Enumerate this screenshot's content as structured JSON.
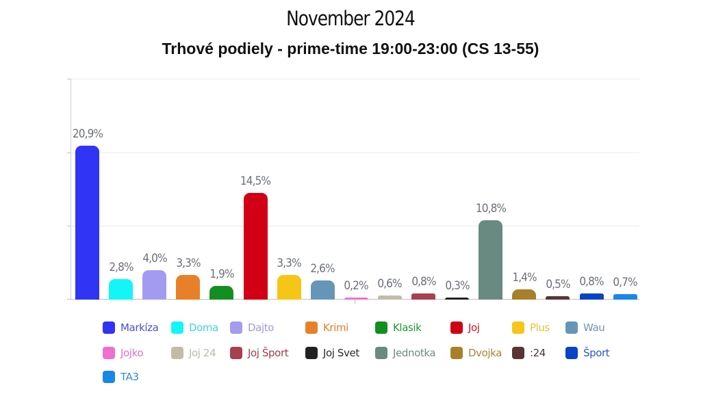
{
  "header": {
    "title": "November 2024",
    "subtitle": "Trhové podiely - prime-time 19:00-23:00 (CS 13-55)"
  },
  "chart_data": {
    "type": "bar",
    "title": "November 2024",
    "subtitle": "Trhové podiely - prime-time 19:00-23:00 (CS 13-55)",
    "xlabel": "",
    "ylabel": "",
    "ylim": [
      0,
      30
    ],
    "grid": true,
    "legend_position": "bottom",
    "categories": [
      "Markíza",
      "Doma",
      "Dajto",
      "Krimi",
      "Klasik",
      "Joj",
      "Plus",
      "Wau",
      "Jojko",
      "Joj 24",
      "Joj Šport",
      "Joj Svet",
      "Jednotka",
      "Dvojka",
      ":24",
      "Šport",
      "TA3"
    ],
    "values": [
      20.9,
      2.8,
      4.0,
      3.3,
      1.9,
      14.5,
      3.3,
      2.6,
      0.2,
      0.6,
      0.8,
      0.3,
      10.8,
      1.4,
      0.5,
      0.8,
      0.7
    ],
    "value_labels": [
      "20,9%",
      "2,8%",
      "4,0%",
      "3,3%",
      "1,9%",
      "14,5%",
      "3,3%",
      "2,6%",
      "0,2%",
      "0,6%",
      "0,8%",
      "0,3%",
      "10,8%",
      "1,4%",
      "0,5%",
      "0,8%",
      "0,7%"
    ],
    "colors": [
      "#2f34f5",
      "#14f5f5",
      "#a29bf0",
      "#e8802a",
      "#138f22",
      "#d10014",
      "#f5c518",
      "#6596b8",
      "#ef6fcf",
      "#c2bca6",
      "#a8404e",
      "#222222",
      "#688a80",
      "#a8802a",
      "#5a3434",
      "#0b43c6",
      "#1b86ea"
    ]
  },
  "legend": {
    "items": [
      {
        "label": "Markíza",
        "color": "#2f34f5",
        "text_color": "#4a4fd8"
      },
      {
        "label": "Doma",
        "color": "#14f5f5",
        "text_color": "#3ed6dc"
      },
      {
        "label": "Dajto",
        "color": "#a29bf0",
        "text_color": "#9f98e6"
      },
      {
        "label": "Krimi",
        "color": "#e8802a",
        "text_color": "#e07c2a"
      },
      {
        "label": "Klasik",
        "color": "#138f22",
        "text_color": "#1f9a2e"
      },
      {
        "label": "Joj",
        "color": "#d10014",
        "text_color": "#cf1020"
      },
      {
        "label": "Plus",
        "color": "#f5c518",
        "text_color": "#e7c232"
      },
      {
        "label": "Wau",
        "color": "#6596b8",
        "text_color": "#6d96b6"
      },
      {
        "label": "Jojko",
        "color": "#ef6fcf",
        "text_color": "#e46ec6"
      },
      {
        "label": "Joj 24",
        "color": "#c2bca6",
        "text_color": "#bdb8a6"
      },
      {
        "label": "Joj Šport",
        "color": "#a8404e",
        "text_color": "#a23a48"
      },
      {
        "label": "Joj Svet",
        "color": "#222222",
        "text_color": "#2a2a2a"
      },
      {
        "label": "Jednotka",
        "color": "#688a80",
        "text_color": "#6f8a82"
      },
      {
        "label": "Dvojka",
        "color": "#a8802a",
        "text_color": "#a98535"
      },
      {
        "label": ":24",
        "color": "#5a3434",
        "text_color": "#4a3434"
      },
      {
        "label": "Šport",
        "color": "#0b43c6",
        "text_color": "#2c56c8"
      },
      {
        "label": "TA3",
        "color": "#1b86ea",
        "text_color": "#2f8ae2"
      }
    ]
  }
}
